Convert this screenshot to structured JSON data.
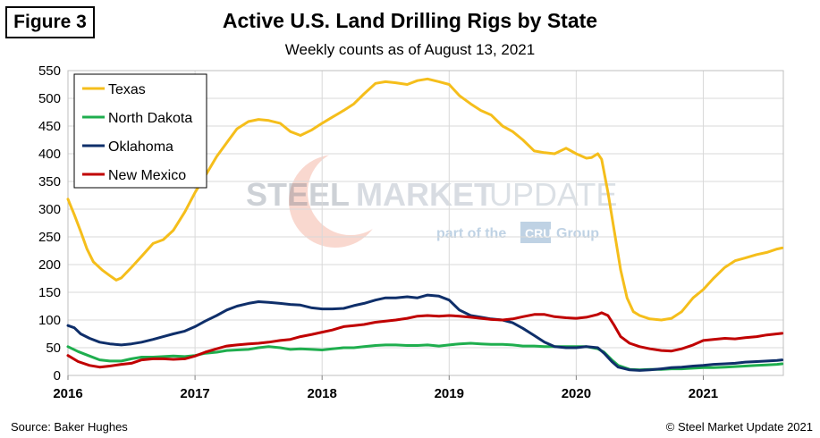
{
  "figure_label": "Figure 3",
  "chart_data": {
    "type": "line",
    "title": "Active U.S. Land Drilling Rigs by State",
    "subtitle": "Weekly counts as of August 13, 2021",
    "xlabel": "",
    "ylabel": "",
    "x_ticks": [
      "2016",
      "2017",
      "2018",
      "2019",
      "2020",
      "2021"
    ],
    "xlim": [
      2016.0,
      2021.63
    ],
    "ylim": [
      0,
      550
    ],
    "y_ticks": [
      0,
      50,
      100,
      150,
      200,
      250,
      300,
      350,
      400,
      450,
      500,
      550
    ],
    "grid": true,
    "legend_position": "top-left",
    "series": [
      {
        "name": "Texas",
        "color": "#F5BE1B",
        "points": [
          [
            2016.0,
            318
          ],
          [
            2016.05,
            290
          ],
          [
            2016.1,
            260
          ],
          [
            2016.15,
            228
          ],
          [
            2016.2,
            205
          ],
          [
            2016.27,
            190
          ],
          [
            2016.33,
            180
          ],
          [
            2016.38,
            172
          ],
          [
            2016.42,
            176
          ],
          [
            2016.5,
            195
          ],
          [
            2016.58,
            215
          ],
          [
            2016.67,
            238
          ],
          [
            2016.75,
            245
          ],
          [
            2016.83,
            262
          ],
          [
            2016.92,
            295
          ],
          [
            2017.0,
            330
          ],
          [
            2017.08,
            360
          ],
          [
            2017.17,
            395
          ],
          [
            2017.25,
            420
          ],
          [
            2017.33,
            445
          ],
          [
            2017.42,
            458
          ],
          [
            2017.5,
            462
          ],
          [
            2017.58,
            460
          ],
          [
            2017.67,
            455
          ],
          [
            2017.75,
            440
          ],
          [
            2017.83,
            433
          ],
          [
            2017.92,
            443
          ],
          [
            2018.0,
            455
          ],
          [
            2018.08,
            466
          ],
          [
            2018.17,
            478
          ],
          [
            2018.25,
            490
          ],
          [
            2018.33,
            508
          ],
          [
            2018.42,
            527
          ],
          [
            2018.5,
            530
          ],
          [
            2018.58,
            528
          ],
          [
            2018.67,
            525
          ],
          [
            2018.75,
            532
          ],
          [
            2018.83,
            535
          ],
          [
            2018.92,
            530
          ],
          [
            2019.0,
            525
          ],
          [
            2019.08,
            505
          ],
          [
            2019.17,
            490
          ],
          [
            2019.25,
            478
          ],
          [
            2019.33,
            470
          ],
          [
            2019.42,
            450
          ],
          [
            2019.5,
            440
          ],
          [
            2019.58,
            425
          ],
          [
            2019.67,
            405
          ],
          [
            2019.75,
            402
          ],
          [
            2019.83,
            400
          ],
          [
            2019.92,
            410
          ],
          [
            2020.0,
            400
          ],
          [
            2020.08,
            392
          ],
          [
            2020.12,
            393
          ],
          [
            2020.17,
            400
          ],
          [
            2020.2,
            390
          ],
          [
            2020.25,
            330
          ],
          [
            2020.3,
            260
          ],
          [
            2020.35,
            190
          ],
          [
            2020.4,
            140
          ],
          [
            2020.45,
            115
          ],
          [
            2020.5,
            108
          ],
          [
            2020.58,
            102
          ],
          [
            2020.67,
            100
          ],
          [
            2020.75,
            103
          ],
          [
            2020.83,
            115
          ],
          [
            2020.92,
            140
          ],
          [
            2021.0,
            155
          ],
          [
            2021.08,
            175
          ],
          [
            2021.17,
            195
          ],
          [
            2021.25,
            207
          ],
          [
            2021.33,
            212
          ],
          [
            2021.42,
            218
          ],
          [
            2021.5,
            222
          ],
          [
            2021.58,
            228
          ],
          [
            2021.62,
            230
          ]
        ]
      },
      {
        "name": "North Dakota",
        "color": "#1FAE4E",
        "points": [
          [
            2016.0,
            52
          ],
          [
            2016.08,
            43
          ],
          [
            2016.17,
            35
          ],
          [
            2016.25,
            28
          ],
          [
            2016.33,
            26
          ],
          [
            2016.42,
            26
          ],
          [
            2016.5,
            30
          ],
          [
            2016.58,
            33
          ],
          [
            2016.67,
            33
          ],
          [
            2016.75,
            34
          ],
          [
            2016.83,
            35
          ],
          [
            2016.92,
            34
          ],
          [
            2017.0,
            36
          ],
          [
            2017.08,
            40
          ],
          [
            2017.17,
            42
          ],
          [
            2017.25,
            45
          ],
          [
            2017.33,
            46
          ],
          [
            2017.42,
            47
          ],
          [
            2017.5,
            50
          ],
          [
            2017.58,
            52
          ],
          [
            2017.67,
            50
          ],
          [
            2017.75,
            47
          ],
          [
            2017.83,
            48
          ],
          [
            2017.92,
            47
          ],
          [
            2018.0,
            46
          ],
          [
            2018.08,
            48
          ],
          [
            2018.17,
            50
          ],
          [
            2018.25,
            50
          ],
          [
            2018.33,
            52
          ],
          [
            2018.42,
            54
          ],
          [
            2018.5,
            55
          ],
          [
            2018.58,
            55
          ],
          [
            2018.67,
            54
          ],
          [
            2018.75,
            54
          ],
          [
            2018.83,
            55
          ],
          [
            2018.92,
            53
          ],
          [
            2019.0,
            55
          ],
          [
            2019.08,
            57
          ],
          [
            2019.17,
            58
          ],
          [
            2019.25,
            57
          ],
          [
            2019.33,
            56
          ],
          [
            2019.42,
            56
          ],
          [
            2019.5,
            55
          ],
          [
            2019.58,
            53
          ],
          [
            2019.67,
            53
          ],
          [
            2019.75,
            52
          ],
          [
            2019.83,
            52
          ],
          [
            2019.92,
            52
          ],
          [
            2020.0,
            52
          ],
          [
            2020.08,
            52
          ],
          [
            2020.17,
            48
          ],
          [
            2020.22,
            42
          ],
          [
            2020.28,
            28
          ],
          [
            2020.33,
            18
          ],
          [
            2020.42,
            11
          ],
          [
            2020.5,
            10
          ],
          [
            2020.58,
            11
          ],
          [
            2020.67,
            11
          ],
          [
            2020.75,
            12
          ],
          [
            2020.83,
            12
          ],
          [
            2020.92,
            13
          ],
          [
            2021.0,
            14
          ],
          [
            2021.08,
            14
          ],
          [
            2021.17,
            15
          ],
          [
            2021.25,
            16
          ],
          [
            2021.33,
            17
          ],
          [
            2021.42,
            18
          ],
          [
            2021.5,
            19
          ],
          [
            2021.58,
            20
          ],
          [
            2021.62,
            21
          ]
        ]
      },
      {
        "name": "Oklahoma",
        "color": "#0F2F6A",
        "points": [
          [
            2016.0,
            90
          ],
          [
            2016.05,
            86
          ],
          [
            2016.1,
            75
          ],
          [
            2016.17,
            67
          ],
          [
            2016.25,
            60
          ],
          [
            2016.33,
            57
          ],
          [
            2016.42,
            55
          ],
          [
            2016.5,
            57
          ],
          [
            2016.58,
            60
          ],
          [
            2016.67,
            65
          ],
          [
            2016.75,
            70
          ],
          [
            2016.83,
            75
          ],
          [
            2016.92,
            80
          ],
          [
            2017.0,
            88
          ],
          [
            2017.08,
            98
          ],
          [
            2017.17,
            108
          ],
          [
            2017.25,
            118
          ],
          [
            2017.33,
            125
          ],
          [
            2017.42,
            130
          ],
          [
            2017.5,
            133
          ],
          [
            2017.58,
            132
          ],
          [
            2017.67,
            130
          ],
          [
            2017.75,
            128
          ],
          [
            2017.83,
            127
          ],
          [
            2017.92,
            122
          ],
          [
            2018.0,
            120
          ],
          [
            2018.08,
            120
          ],
          [
            2018.17,
            121
          ],
          [
            2018.25,
            126
          ],
          [
            2018.33,
            130
          ],
          [
            2018.42,
            136
          ],
          [
            2018.5,
            140
          ],
          [
            2018.58,
            140
          ],
          [
            2018.67,
            142
          ],
          [
            2018.75,
            140
          ],
          [
            2018.83,
            145
          ],
          [
            2018.92,
            143
          ],
          [
            2019.0,
            136
          ],
          [
            2019.08,
            118
          ],
          [
            2019.17,
            108
          ],
          [
            2019.25,
            105
          ],
          [
            2019.33,
            102
          ],
          [
            2019.42,
            100
          ],
          [
            2019.5,
            95
          ],
          [
            2019.58,
            85
          ],
          [
            2019.67,
            72
          ],
          [
            2019.75,
            60
          ],
          [
            2019.83,
            52
          ],
          [
            2019.92,
            50
          ],
          [
            2020.0,
            50
          ],
          [
            2020.08,
            52
          ],
          [
            2020.17,
            50
          ],
          [
            2020.22,
            40
          ],
          [
            2020.28,
            25
          ],
          [
            2020.33,
            15
          ],
          [
            2020.42,
            10
          ],
          [
            2020.5,
            9
          ],
          [
            2020.58,
            10
          ],
          [
            2020.67,
            12
          ],
          [
            2020.75,
            14
          ],
          [
            2020.83,
            15
          ],
          [
            2020.92,
            17
          ],
          [
            2021.0,
            18
          ],
          [
            2021.08,
            20
          ],
          [
            2021.17,
            21
          ],
          [
            2021.25,
            22
          ],
          [
            2021.33,
            24
          ],
          [
            2021.42,
            25
          ],
          [
            2021.5,
            26
          ],
          [
            2021.58,
            27
          ],
          [
            2021.62,
            28
          ]
        ]
      },
      {
        "name": "New Mexico",
        "color": "#C00000",
        "points": [
          [
            2016.0,
            36
          ],
          [
            2016.08,
            25
          ],
          [
            2016.17,
            18
          ],
          [
            2016.25,
            15
          ],
          [
            2016.33,
            17
          ],
          [
            2016.42,
            20
          ],
          [
            2016.5,
            22
          ],
          [
            2016.58,
            28
          ],
          [
            2016.67,
            30
          ],
          [
            2016.75,
            30
          ],
          [
            2016.83,
            29
          ],
          [
            2016.92,
            30
          ],
          [
            2017.0,
            35
          ],
          [
            2017.08,
            42
          ],
          [
            2017.17,
            48
          ],
          [
            2017.25,
            53
          ],
          [
            2017.33,
            55
          ],
          [
            2017.42,
            57
          ],
          [
            2017.5,
            58
          ],
          [
            2017.58,
            60
          ],
          [
            2017.67,
            63
          ],
          [
            2017.75,
            65
          ],
          [
            2017.83,
            70
          ],
          [
            2017.92,
            74
          ],
          [
            2018.0,
            78
          ],
          [
            2018.08,
            82
          ],
          [
            2018.17,
            88
          ],
          [
            2018.25,
            90
          ],
          [
            2018.33,
            92
          ],
          [
            2018.42,
            96
          ],
          [
            2018.5,
            98
          ],
          [
            2018.58,
            100
          ],
          [
            2018.67,
            103
          ],
          [
            2018.75,
            107
          ],
          [
            2018.83,
            108
          ],
          [
            2018.92,
            107
          ],
          [
            2019.0,
            108
          ],
          [
            2019.08,
            107
          ],
          [
            2019.17,
            105
          ],
          [
            2019.25,
            103
          ],
          [
            2019.33,
            101
          ],
          [
            2019.42,
            100
          ],
          [
            2019.5,
            102
          ],
          [
            2019.58,
            106
          ],
          [
            2019.67,
            110
          ],
          [
            2019.75,
            110
          ],
          [
            2019.83,
            106
          ],
          [
            2019.92,
            104
          ],
          [
            2020.0,
            103
          ],
          [
            2020.08,
            105
          ],
          [
            2020.17,
            110
          ],
          [
            2020.2,
            113
          ],
          [
            2020.25,
            108
          ],
          [
            2020.3,
            90
          ],
          [
            2020.35,
            70
          ],
          [
            2020.42,
            58
          ],
          [
            2020.5,
            52
          ],
          [
            2020.58,
            48
          ],
          [
            2020.67,
            45
          ],
          [
            2020.75,
            44
          ],
          [
            2020.83,
            48
          ],
          [
            2020.92,
            55
          ],
          [
            2021.0,
            63
          ],
          [
            2021.08,
            65
          ],
          [
            2021.17,
            67
          ],
          [
            2021.25,
            66
          ],
          [
            2021.33,
            68
          ],
          [
            2021.42,
            70
          ],
          [
            2021.5,
            73
          ],
          [
            2021.58,
            75
          ],
          [
            2021.62,
            76
          ]
        ]
      }
    ]
  },
  "watermark": {
    "brand_part1": "STEEL",
    "brand_part2": "MARKET",
    "brand_part3": "UPDATE",
    "tagline_prefix": "part of the",
    "tagline_logo": "CRU",
    "tagline_suffix": "Group"
  },
  "source_note": "Source: Baker Hughes",
  "copyright": "© Steel Market Update 2021"
}
